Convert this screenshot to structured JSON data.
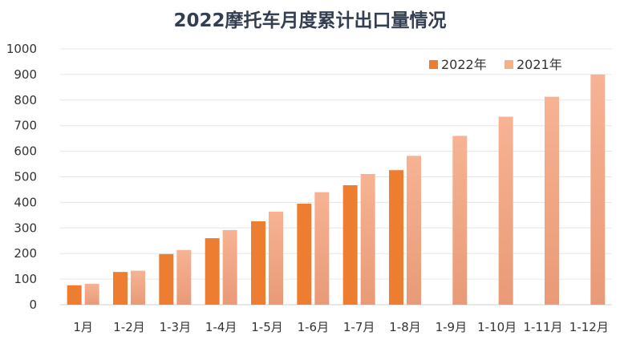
{
  "chart_data": {
    "type": "bar",
    "title": "2022摩托车月度累计出口量情况",
    "categories": [
      "1月",
      "1-2月",
      "1-3月",
      "1-4月",
      "1-5月",
      "1-6月",
      "1-7月",
      "1-8月",
      "1-9月",
      "1-10月",
      "1-11月",
      "1-12月"
    ],
    "series": [
      {
        "name": "2022年",
        "color": "#ed7d31",
        "values": [
          76,
          128,
          198,
          260,
          326,
          395,
          467,
          526,
          null,
          null,
          null,
          null
        ]
      },
      {
        "name": "2021年",
        "color": "#f4b183",
        "values": [
          82,
          133,
          214,
          292,
          364,
          440,
          511,
          582,
          660,
          735,
          813,
          900
        ]
      }
    ],
    "yticks": [
      "0",
      "100",
      "200",
      "300",
      "400",
      "500",
      "600",
      "700",
      "800",
      "900",
      "1000"
    ],
    "ylim": [
      0,
      1000
    ],
    "xlabel": "",
    "ylabel": "",
    "grid": true,
    "legend_position": "top-right"
  }
}
